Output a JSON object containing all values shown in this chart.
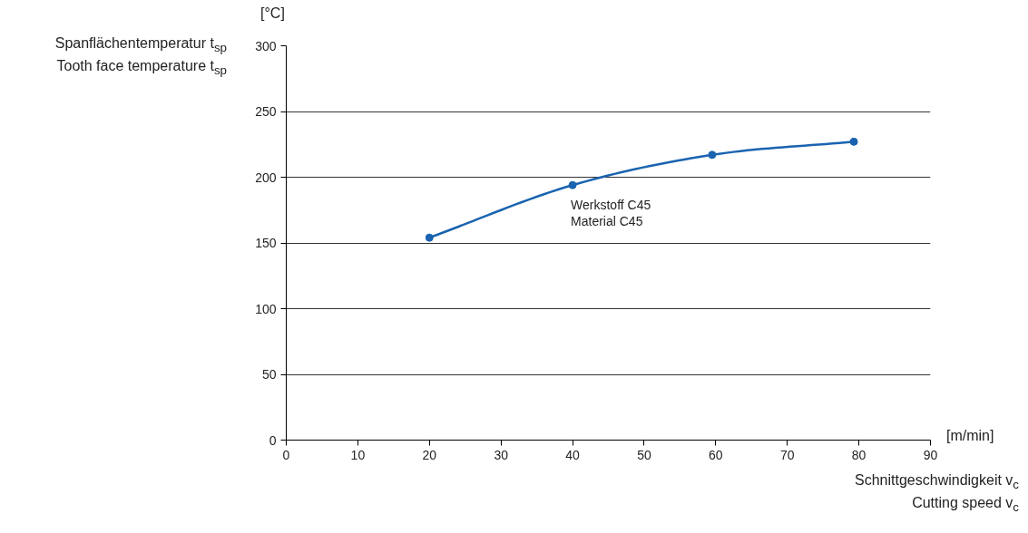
{
  "chart_data": {
    "type": "line",
    "ylabel": "Spanflächentemperatur t$_{sp}$\nTooth face temperature t$_{sp}$",
    "xlabel": "Schnittgeschwindigkeit v$_{c}$\nCutting speed v$_{c}$",
    "annotations": [
      "[°C]",
      "[m/min]"
    ],
    "x": [
      20,
      40,
      59.5,
      79.3
    ],
    "series": [
      {
        "name": "Werkstoff C45\nMaterial C45",
        "color": "#1a63b0",
        "values": [
          154,
          194,
          217,
          227
        ]
      }
    ],
    "xlim": [
      0,
      90
    ],
    "xticks": [
      0,
      10,
      20,
      30,
      40,
      50,
      60,
      70,
      80,
      90
    ],
    "ylim": [
      0,
      300
    ],
    "yticks": [
      0,
      50,
      100,
      150,
      200,
      250,
      300
    ],
    "grid": "y",
    "marker": "circle",
    "line_style": "solid"
  }
}
